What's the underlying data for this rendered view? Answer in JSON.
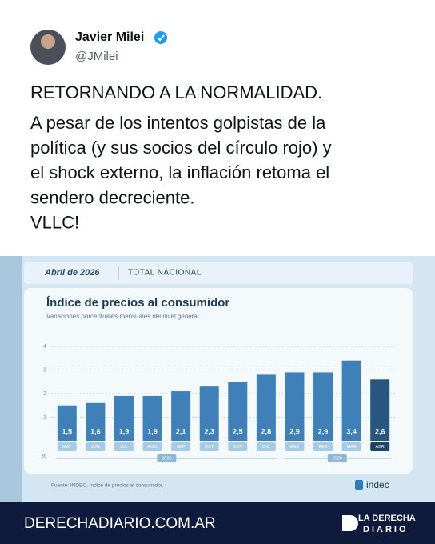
{
  "tweet": {
    "name": "Javier Milei",
    "handle": "@JMilei",
    "text_lines": [
      "RETORNANDO A LA NORMALIDAD.",
      "A pesar de los intentos golpistas de la",
      "política (y sus socios del círculo rojo) y",
      "el shock externo, la inflación retoma el",
      "sendero decreciente.",
      "VLLC!"
    ]
  },
  "chart_data": {
    "type": "bar",
    "header_date": "Abril de 2026",
    "header_region": "TOTAL NACIONAL",
    "title": "Índice de precios al consumidor",
    "subtitle": "Variaciones porcentuales mensuales del nivel general",
    "categories": [
      "MAY",
      "JUN",
      "JUL",
      "AGO",
      "SEP",
      "OCT",
      "NOV",
      "DIC",
      "ENE",
      "FEB",
      "MAR",
      "ABR"
    ],
    "values": [
      1.5,
      1.6,
      1.9,
      1.9,
      2.1,
      2.3,
      2.5,
      2.8,
      2.9,
      2.9,
      3.4,
      2.6
    ],
    "value_labels": [
      "1,5",
      "1,6",
      "1,9",
      "1,9",
      "2,1",
      "2,3",
      "2,5",
      "2,8",
      "2,9",
      "2,9",
      "3,4",
      "2,6"
    ],
    "colors": [
      "#3f80b8",
      "#3f80b8",
      "#3f80b8",
      "#3f80b8",
      "#3f80b8",
      "#3f80b8",
      "#3f80b8",
      "#3f80b8",
      "#3f80b8",
      "#3f80b8",
      "#3f80b8",
      "#27577f"
    ],
    "category_colors": [
      "#a6cbe5",
      "#a6cbe5",
      "#a6cbe5",
      "#a6cbe5",
      "#a6cbe5",
      "#a6cbe5",
      "#a6cbe5",
      "#a6cbe5",
      "#a6cbe5",
      "#a6cbe5",
      "#a6cbe5",
      "#1e4566"
    ],
    "year_labels": [
      "2025",
      "2026"
    ],
    "y_unit": "%",
    "ylim": [
      0,
      4
    ],
    "yticks": [
      1,
      2,
      3,
      4
    ],
    "grid": true,
    "source": "Fuente: INDEC, Índice de precios al consumidor.",
    "logo": "indec"
  },
  "footer": {
    "site": "DERECHADIARIO.COM.AR",
    "brand_top": "LA DERECHA",
    "brand_bottom": "DIARIO"
  }
}
